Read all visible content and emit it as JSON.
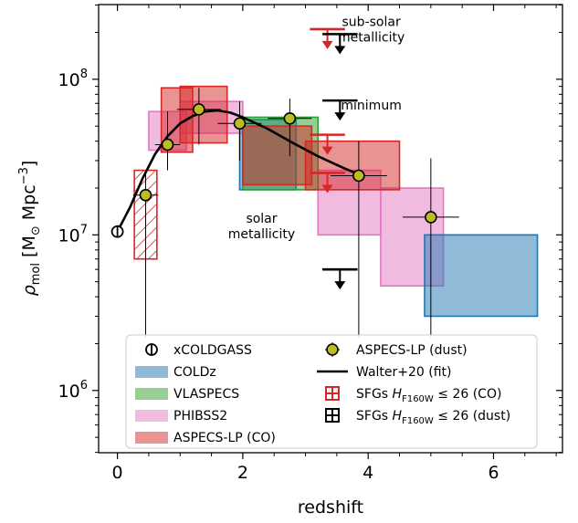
{
  "chart_data": {
    "type": "scatter",
    "xlabel": "redshift",
    "ylabel_parts": [
      "ρ",
      "mol",
      " [M",
      "⊙",
      " Mpc",
      "−3",
      "]"
    ],
    "xlim": [
      -0.3,
      7.1
    ],
    "ylim_log10": [
      5.6,
      8.48
    ],
    "yscale": "log",
    "x_ticks": [
      0,
      2,
      4,
      6
    ],
    "x_minor_step": 0.5,
    "y_ticks": [
      {
        "exp": 6,
        "base": "10",
        "sup": "6"
      },
      {
        "exp": 7,
        "base": "10",
        "sup": "7"
      },
      {
        "exp": 8,
        "base": "10",
        "sup": "8"
      }
    ],
    "colors": {
      "coldz": "#1f77b4",
      "vlaspecs": "#2ca02c",
      "phibss2": "#e377c2",
      "aspecs_co": "#d62728",
      "aspecs_dust": "#bcbd22",
      "black": "#000000"
    },
    "boxes": [
      {
        "dataset": "phibss2",
        "x": [
          0.5,
          1.1
        ],
        "y": [
          35000000,
          62000000
        ]
      },
      {
        "dataset": "phibss2",
        "x": [
          1.0,
          2.0
        ],
        "y": [
          45000000,
          72000000
        ]
      },
      {
        "dataset": "phibss2",
        "x": [
          3.2,
          4.2
        ],
        "y": [
          10000000,
          26000000
        ]
      },
      {
        "dataset": "phibss2",
        "x": [
          4.2,
          5.2
        ],
        "y": [
          4700000,
          20000000
        ]
      },
      {
        "dataset": "coldz",
        "x": [
          1.95,
          2.85
        ],
        "y": [
          19500000,
          55000000
        ]
      },
      {
        "dataset": "coldz",
        "x": [
          4.9,
          6.7
        ],
        "y": [
          3000000,
          10000000
        ]
      },
      {
        "dataset": "vlaspecs",
        "x": [
          2.0,
          3.2
        ],
        "y": [
          19500000,
          57000000
        ]
      },
      {
        "dataset": "aspecs_co",
        "x": [
          0.7,
          1.2
        ],
        "y": [
          34000000,
          88000000
        ]
      },
      {
        "dataset": "aspecs_co",
        "x": [
          1.0,
          1.75
        ],
        "y": [
          39000000,
          90000000
        ]
      },
      {
        "dataset": "aspecs_co",
        "x": [
          2.0,
          3.1
        ],
        "y": [
          21000000,
          50000000
        ]
      },
      {
        "dataset": "aspecs_co",
        "x": [
          3.0,
          4.5
        ],
        "y": [
          19500000,
          40000000
        ]
      }
    ],
    "hatched_box": {
      "dataset": "aspecs_co",
      "x": [
        0.27,
        0.63
      ],
      "y": [
        7000000,
        26000000
      ]
    },
    "xcoldgass": {
      "x": 0.0,
      "y": 10500000
    },
    "dust_points": [
      {
        "x": 0.45,
        "y": 18000000,
        "xerr": [
          0.2,
          0.2
        ],
        "yerr": [
          2200000,
          26000000
        ]
      },
      {
        "x": 0.8,
        "y": 38000000,
        "xerr": [
          0.2,
          0.2
        ],
        "yerr": [
          26000000,
          62000000
        ]
      },
      {
        "x": 1.3,
        "y": 64000000,
        "xerr": [
          0.35,
          0.35
        ],
        "yerr": [
          38000000,
          88000000
        ]
      },
      {
        "x": 1.95,
        "y": 52000000,
        "xerr": [
          0.35,
          0.35
        ],
        "yerr": [
          30000000,
          72000000
        ]
      },
      {
        "x": 2.75,
        "y": 56000000,
        "xerr": [
          0.35,
          0.35
        ],
        "yerr": [
          32000000,
          75000000
        ]
      },
      {
        "x": 3.85,
        "y": 24000000,
        "xerr": [
          0.45,
          0.45
        ],
        "yerr": [
          2200000,
          40000000
        ]
      },
      {
        "x": 5.0,
        "y": 13000000,
        "xerr": [
          0.45,
          0.45
        ],
        "yerr": [
          2200000,
          31000000
        ]
      }
    ],
    "fit_curve": {
      "x": [
        0.0,
        0.2,
        0.4,
        0.6,
        0.8,
        1.0,
        1.2,
        1.4,
        1.6,
        1.8,
        2.0,
        2.4,
        2.8,
        3.2,
        3.6,
        3.85
      ],
      "y": [
        10500000,
        15000000,
        23000000,
        33000000,
        43000000,
        52000000,
        58000000,
        62000000,
        63000000,
        61000000,
        57000000,
        48000000,
        39000000,
        32000000,
        27000000,
        24500000
      ]
    },
    "upper_limits": [
      {
        "color": "aspecs_co",
        "x": 3.35,
        "y": 210000000,
        "half_width": 0.28
      },
      {
        "color": "black",
        "x": 3.55,
        "y": 195000000,
        "half_width": 0.28
      },
      {
        "color": "black",
        "x": 3.55,
        "y": 73000000,
        "half_width": 0.28
      },
      {
        "color": "aspecs_co",
        "x": 3.35,
        "y": 44000000,
        "half_width": 0.28
      },
      {
        "color": "aspecs_co",
        "x": 3.35,
        "y": 25000000,
        "half_width": 0.28
      },
      {
        "color": "black",
        "x": 3.55,
        "y": 6000000,
        "half_width": 0.28
      }
    ],
    "annotations": [
      {
        "lines": [
          "sub-solar",
          "metallicity"
        ],
        "x": 4.05,
        "y": 220000000
      },
      {
        "lines": [
          "minimum"
        ],
        "x": 4.05,
        "y": 64000000
      },
      {
        "lines": [
          "solar",
          "metallicity"
        ],
        "x": 2.3,
        "y": 12000000
      }
    ],
    "legend": {
      "position": "lower-center",
      "left_column": [
        {
          "label": "xCOLDGASS",
          "marker": "halfcircle"
        },
        {
          "label": "COLDz",
          "marker": "patch",
          "color": "coldz"
        },
        {
          "label": "VLASPECS",
          "marker": "patch",
          "color": "vlaspecs"
        },
        {
          "label": "PHIBSS2",
          "marker": "patch",
          "color": "phibss2"
        },
        {
          "label": "ASPECS-LP (CO)",
          "marker": "patch",
          "color": "aspecs_co"
        }
      ],
      "right_column": [
        {
          "label": "ASPECS-LP (dust)",
          "marker": "dust"
        },
        {
          "label": "Walter+20 (fit)",
          "marker": "line"
        },
        {
          "label_parts": [
            "SFGs ",
            "H",
            "F160W",
            " ≤ 26 (CO)"
          ],
          "marker": "limit",
          "color": "aspecs_co"
        },
        {
          "label_parts": [
            "SFGs ",
            "H",
            "F160W",
            " ≤ 26 (dust)"
          ],
          "marker": "limit",
          "color": "black"
        }
      ]
    }
  }
}
